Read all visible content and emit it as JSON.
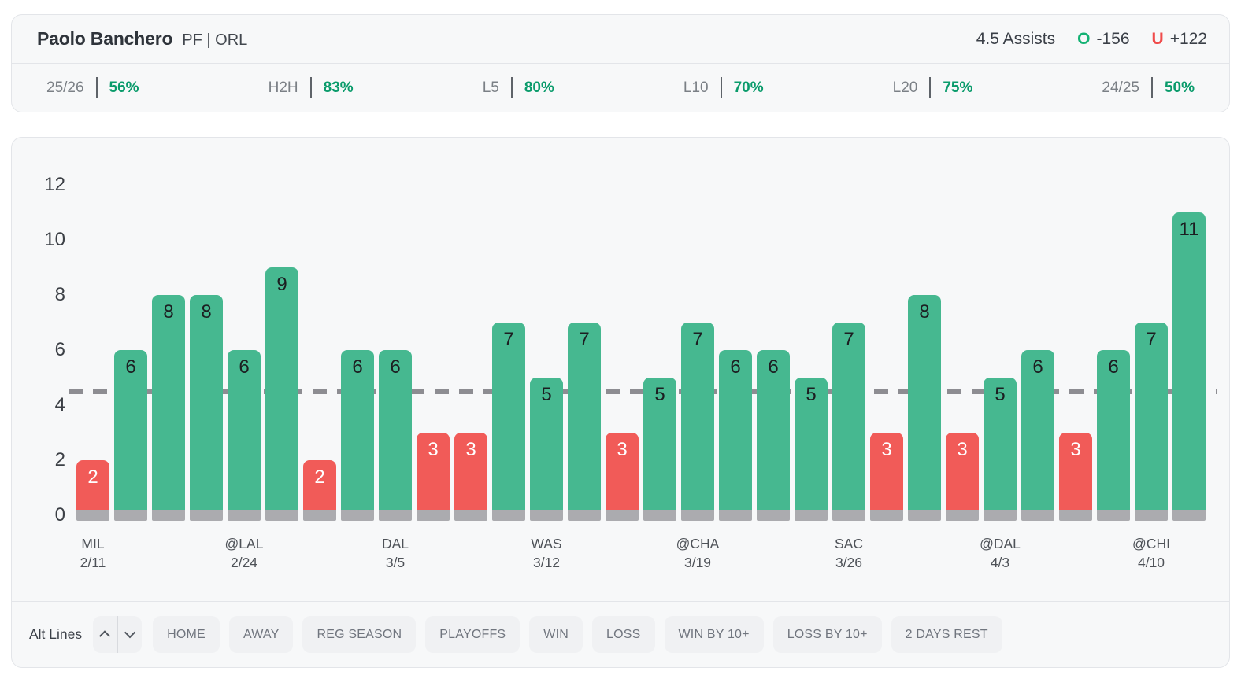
{
  "header": {
    "player_name": "Paolo Banchero",
    "player_meta": "PF | ORL",
    "line_label": "4.5 Assists",
    "over_prefix": "O",
    "over_odds": "-156",
    "under_prefix": "U",
    "under_odds": "+122",
    "over_color": "#14b274",
    "under_color": "#f04b4b"
  },
  "stats": [
    {
      "label": "25/26",
      "value": "56%"
    },
    {
      "label": "H2H",
      "value": "83%"
    },
    {
      "label": "L5",
      "value": "80%"
    },
    {
      "label": "L10",
      "value": "70%"
    },
    {
      "label": "L20",
      "value": "75%"
    },
    {
      "label": "24/25",
      "value": "50%"
    }
  ],
  "stats_value_color": "#0a9b6b",
  "chart_data": {
    "type": "bar",
    "title": "",
    "xlabel": "",
    "ylabel": "",
    "ylim": [
      0,
      12
    ],
    "yticks": [
      0,
      2,
      4,
      6,
      8,
      10,
      12
    ],
    "threshold_line": 4.5,
    "grid": false,
    "legend": false,
    "over_color": "#46b890",
    "under_color": "#f15b58",
    "base_color": "#ababaf",
    "line_color": "#8d8d92",
    "over_value_color": "#1c1e21",
    "under_value_color": "#ffffff",
    "games": [
      {
        "value": 2,
        "team": "MIL",
        "date": "2/11"
      },
      {
        "value": 6
      },
      {
        "value": 8
      },
      {
        "value": 8
      },
      {
        "value": 6,
        "team": "@LAL",
        "date": "2/24"
      },
      {
        "value": 9
      },
      {
        "value": 2
      },
      {
        "value": 6
      },
      {
        "value": 6,
        "team": "DAL",
        "date": "3/5"
      },
      {
        "value": 3
      },
      {
        "value": 3
      },
      {
        "value": 7
      },
      {
        "value": 5,
        "team": "WAS",
        "date": "3/12"
      },
      {
        "value": 7
      },
      {
        "value": 3
      },
      {
        "value": 5
      },
      {
        "value": 7,
        "team": "@CHA",
        "date": "3/19"
      },
      {
        "value": 6
      },
      {
        "value": 6
      },
      {
        "value": 5
      },
      {
        "value": 7,
        "team": "SAC",
        "date": "3/26"
      },
      {
        "value": 3
      },
      {
        "value": 8
      },
      {
        "value": 3
      },
      {
        "value": 5,
        "team": "@DAL",
        "date": "4/3"
      },
      {
        "value": 6
      },
      {
        "value": 3
      },
      {
        "value": 6
      },
      {
        "value": 7,
        "team": "@CHI",
        "date": "4/10"
      },
      {
        "value": 11
      }
    ]
  },
  "controls": {
    "alt_lines_label": "Alt Lines",
    "filters": [
      "HOME",
      "AWAY",
      "REG SEASON",
      "PLAYOFFS",
      "WIN",
      "LOSS",
      "WIN BY 10+",
      "LOSS BY 10+",
      "2 DAYS REST"
    ]
  }
}
